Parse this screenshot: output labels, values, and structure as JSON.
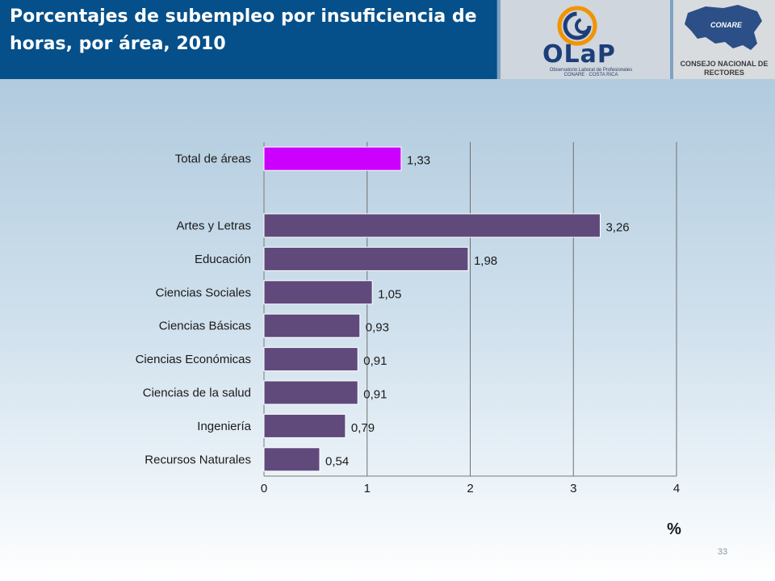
{
  "slide": {
    "title": "Porcentajes de subempleo por insuficiencia de horas, por área, 2010",
    "page_number": "33"
  },
  "logos": {
    "olap_word": "OLaP",
    "olap_subtitle": "Observatorio Laboral de Profesionales CONARE · COSTA RICA",
    "conare_badge": "CONARE",
    "conare_name": "CONSEJO NACIONAL DE RECTORES"
  },
  "colors": {
    "title_bg": "#05508a",
    "bar_default": "#604a7b",
    "bar_highlight": "#cc00ff"
  },
  "chart_data": {
    "type": "bar",
    "orientation": "horizontal",
    "categories": [
      "Total de áreas",
      "",
      "Artes y Letras",
      "Educación",
      "Ciencias Sociales",
      "Ciencias Básicas",
      "Ciencias Económicas",
      "Ciencias de la salud",
      "Ingeniería",
      "Recursos Naturales"
    ],
    "values": [
      1.33,
      null,
      3.26,
      1.98,
      1.05,
      0.93,
      0.91,
      0.91,
      0.79,
      0.54
    ],
    "value_labels": [
      "1,33",
      "",
      "3,26",
      "1,98",
      "1,05",
      "0,93",
      "0,91",
      "0,91",
      "0,79",
      "0,54"
    ],
    "highlight_index": 0,
    "xlim": [
      0,
      4
    ],
    "xticks": [
      0,
      1,
      2,
      3,
      4
    ],
    "xlabel": "%",
    "ylabel": "",
    "grid": "vertical",
    "legend": "none"
  }
}
